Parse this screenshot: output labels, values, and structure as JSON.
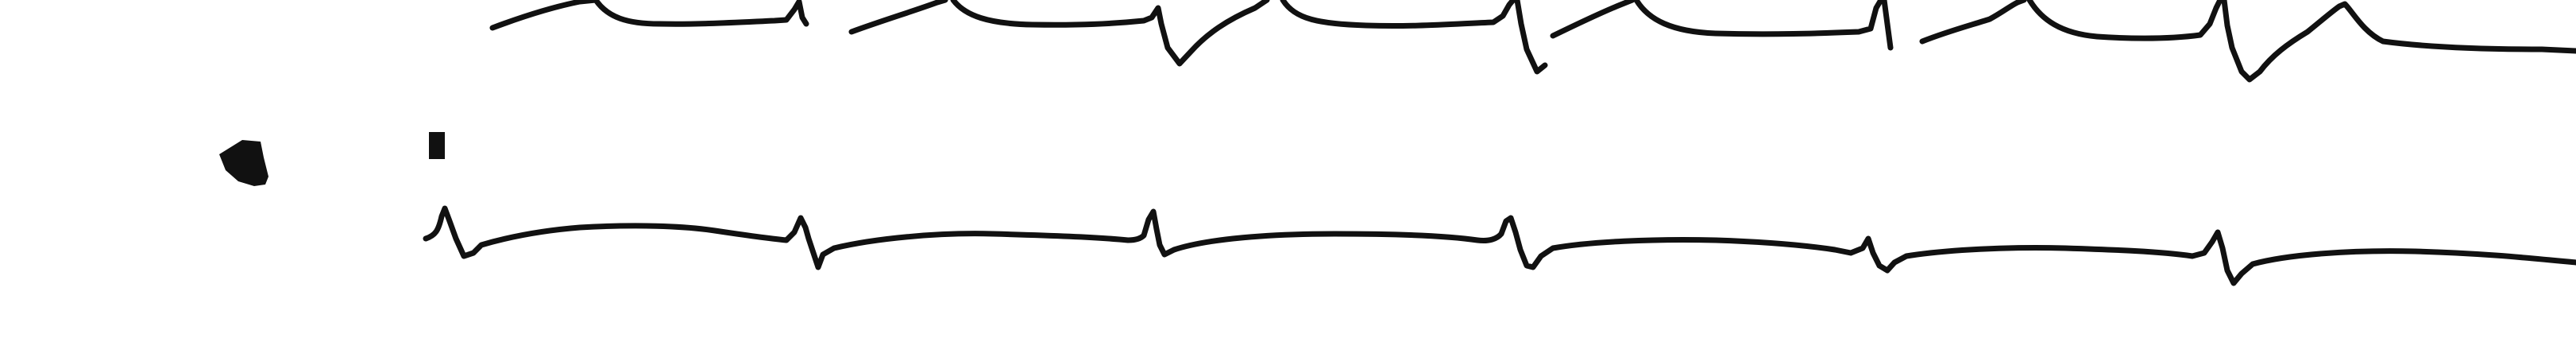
{
  "strip": {
    "background": "#ffffff",
    "ink_color": "#111111"
  },
  "leads": [
    {
      "id": "upper-lead"
    },
    {
      "id": "lower-lead"
    }
  ],
  "markers": [
    {
      "id": "calibration-mark"
    },
    {
      "id": "lead-start-mark"
    }
  ]
}
